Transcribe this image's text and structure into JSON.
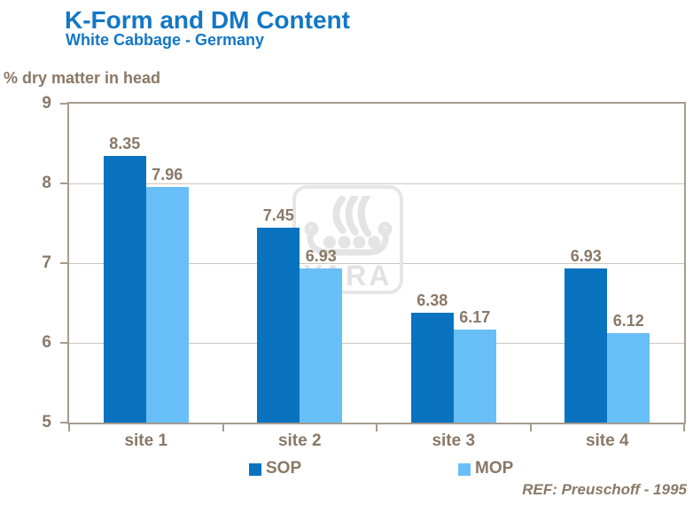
{
  "header": {
    "title": "K-Form and DM Content",
    "subtitle": "White Cabbage - Germany"
  },
  "footer": {
    "reference": "REF: Preuschoff - 1995"
  },
  "watermark": {
    "icon": "yara-viking-ship-logo",
    "text": "YARA"
  },
  "colors": {
    "title_blue": "#1377c6",
    "sop_blue": "#0a73c0",
    "mop_blue": "#68bff7",
    "label_brown": "#8a7866",
    "axis_border": "#a69c8e",
    "gridline": "#cdc6bc",
    "watermark_gray": "#e4e4e4"
  },
  "chart_data": {
    "type": "bar",
    "title": "K-Form and DM Content",
    "subtitle": "White Cabbage - Germany",
    "ylabel": "% dry matter in head",
    "xlabel": "",
    "categories": [
      "site 1",
      "site 2",
      "site 3",
      "site 4"
    ],
    "series": [
      {
        "name": "SOP",
        "color": "#0a73c0",
        "values": [
          8.35,
          7.45,
          6.38,
          6.93
        ]
      },
      {
        "name": "MOP",
        "color": "#68bff7",
        "values": [
          7.96,
          6.93,
          6.17,
          6.12
        ]
      }
    ],
    "ylim": [
      5,
      9
    ],
    "yticks": [
      5,
      6,
      7,
      8,
      9
    ],
    "grid": true,
    "value_labels": true,
    "legend_position": "bottom"
  }
}
